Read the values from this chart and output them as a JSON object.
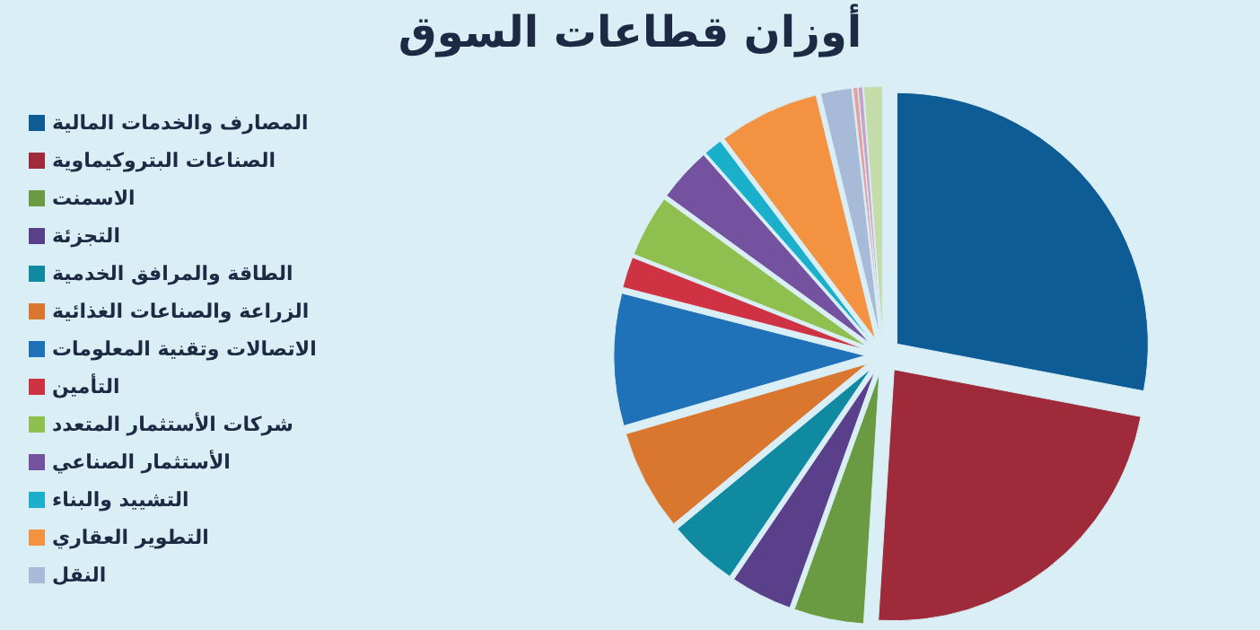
{
  "chart_data": {
    "type": "pie",
    "title": "أوزان قطاعات السوق",
    "categories": [
      "المصارف والخدمات المالية",
      "الصناعات البتروكيماوية",
      "الاسمنت",
      "التجزئة",
      "الطاقة والمرافق الخدمية",
      "الزراعة والصناعات الغذائية",
      "الاتصالات وتقنية المعلومات",
      "التأمين",
      "شركات الأستثمار المتعدد",
      "الأستثمار الصناعي",
      "التشييد والبناء",
      "التطوير العقاري",
      "النقل",
      null,
      null,
      null
    ],
    "values": [
      28,
      23,
      4.5,
      4,
      4.5,
      6.5,
      8.5,
      2,
      4,
      3.5,
      1.2,
      6.5,
      2,
      0.3,
      0.3,
      1.2
    ],
    "colors": [
      "#0e5c96",
      "#9e2a3a",
      "#6a9a42",
      "#5a3f8a",
      "#0f8aa0",
      "#d9772e",
      "#1f72b8",
      "#cf3343",
      "#8fbf4f",
      "#7452a0",
      "#1ab0cc",
      "#f39240",
      "#a7bbd9",
      "#e6a0a0",
      "#c8a0c8",
      "#c4dcaa"
    ],
    "legend": "left"
  }
}
